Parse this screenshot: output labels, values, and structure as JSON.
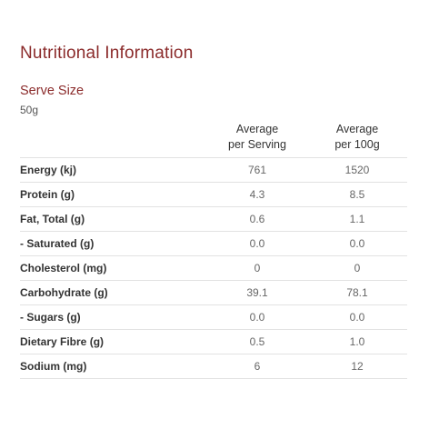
{
  "title": "Nutritional Information",
  "serve": {
    "heading": "Serve Size",
    "value": "50g"
  },
  "table": {
    "headers": {
      "per_serving_line1": "Average",
      "per_serving_line2": "per Serving",
      "per_100g_line1": "Average",
      "per_100g_line2": "per 100g"
    },
    "rows": [
      {
        "label": "Energy (kj)",
        "per_serving": "761",
        "per_100g": "1520"
      },
      {
        "label": "Protein (g)",
        "per_serving": "4.3",
        "per_100g": "8.5"
      },
      {
        "label": "Fat, Total (g)",
        "per_serving": "0.6",
        "per_100g": "1.1"
      },
      {
        "label": "- Saturated (g)",
        "per_serving": "0.0",
        "per_100g": "0.0"
      },
      {
        "label": "Cholesterol (mg)",
        "per_serving": "0",
        "per_100g": "0"
      },
      {
        "label": "Carbohydrate (g)",
        "per_serving": "39.1",
        "per_100g": "78.1"
      },
      {
        "label": "- Sugars (g)",
        "per_serving": "0.0",
        "per_100g": "0.0"
      },
      {
        "label": "Dietary Fibre (g)",
        "per_serving": "0.5",
        "per_100g": "1.0"
      },
      {
        "label": "Sodium (mg)",
        "per_serving": "6",
        "per_100g": "12"
      }
    ]
  },
  "colors": {
    "accent": "#8b2b2b",
    "divider": "#e2e2e2"
  }
}
